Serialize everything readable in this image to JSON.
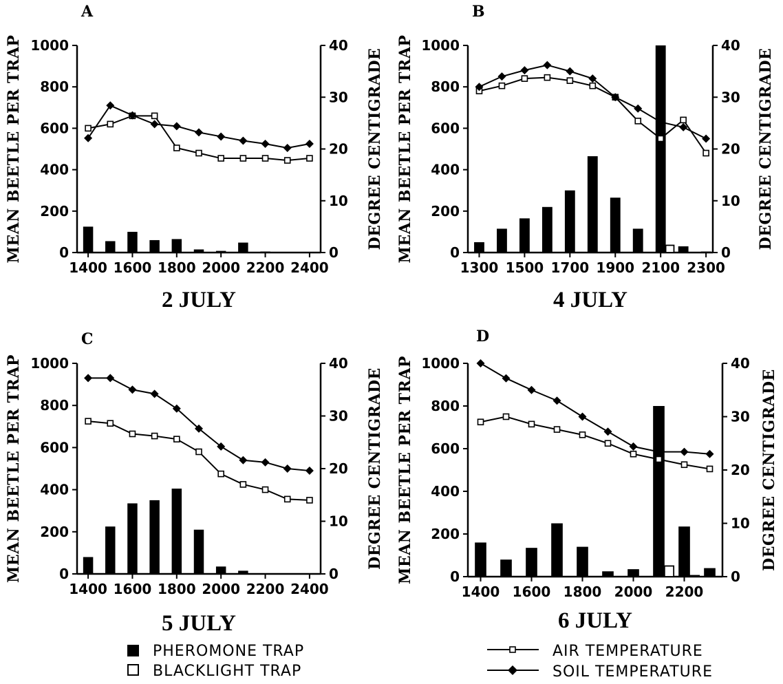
{
  "chart_data": [
    {
      "type": "bar+line",
      "panel": "A",
      "date": "2 JULY",
      "ylabel": "MEAN BEETLE PER TRAP",
      "y2label": "DEGREE CENTIGRADE",
      "ylim": [
        0,
        1000
      ],
      "y2lim": [
        0,
        40
      ],
      "yticks": [
        "0",
        "200",
        "400",
        "600",
        "800",
        "1000"
      ],
      "y2ticks": [
        "0",
        "10",
        "20",
        "30",
        "40"
      ],
      "xlim": [
        1350,
        2450
      ],
      "xticks": [
        "1400",
        "1600",
        "1800",
        "2000",
        "2200",
        "2400"
      ],
      "pheromone": {
        "x": [
          1400,
          1500,
          1600,
          1700,
          1800,
          1900,
          2000,
          2100,
          2200
        ],
        "values": [
          125,
          55,
          100,
          60,
          65,
          15,
          8,
          48,
          5
        ]
      },
      "blacklight": {
        "x": [],
        "values": []
      },
      "air_temperature": {
        "x": [
          1400,
          1500,
          1600,
          1700,
          1800,
          1900,
          2000,
          2100,
          2200,
          2300,
          2400
        ],
        "values": [
          24,
          24.8,
          26.4,
          26.4,
          20.2,
          19.2,
          18.2,
          18.2,
          18.2,
          17.8,
          18.2
        ]
      },
      "soil_temperature": {
        "x": [
          1400,
          1500,
          1600,
          1700,
          1800,
          1900,
          2000,
          2100,
          2200,
          2300,
          2400
        ],
        "values": [
          22.1,
          28.4,
          26.5,
          24.8,
          24.4,
          23.2,
          22.4,
          21.6,
          21,
          20.2,
          21
        ]
      }
    },
    {
      "type": "bar+line",
      "panel": "B",
      "date": "4 JULY",
      "ylabel": "MEAN BEETLE PER TRAP",
      "y2label": "DEGREE CENTIGRADE",
      "ylim": [
        0,
        1000
      ],
      "y2lim": [
        0,
        40
      ],
      "yticks": [
        "0",
        "200",
        "400",
        "600",
        "800",
        "1000"
      ],
      "y2ticks": [
        "0",
        "10",
        "20",
        "30",
        "40"
      ],
      "xlim": [
        1250,
        2330
      ],
      "xticks": [
        "1300",
        "1500",
        "1700",
        "1900",
        "2100",
        "2300"
      ],
      "pheromone": {
        "x": [
          1300,
          1400,
          1500,
          1600,
          1700,
          1800,
          1900,
          2000,
          2100,
          2200,
          2300
        ],
        "values": [
          50,
          115,
          165,
          220,
          300,
          465,
          265,
          115,
          1000,
          30,
          5
        ]
      },
      "blacklight": {
        "x": [
          2100
        ],
        "values": [
          35
        ]
      },
      "air_temperature": {
        "x": [
          1300,
          1400,
          1500,
          1600,
          1700,
          1800,
          1900,
          2000,
          2100,
          2200,
          2300
        ],
        "values": [
          31.2,
          32.2,
          33.6,
          33.8,
          33.2,
          32.2,
          30,
          25.4,
          22,
          25.6,
          19.2
        ]
      },
      "soil_temperature": {
        "x": [
          1300,
          1400,
          1500,
          1600,
          1700,
          1800,
          1900,
          2000,
          2100,
          2200,
          2300
        ],
        "values": [
          32,
          34,
          35.2,
          36.2,
          35,
          33.6,
          30,
          27.8,
          25.2,
          24.2,
          22
        ]
      }
    },
    {
      "type": "bar+line",
      "panel": "C",
      "date": "5 JULY",
      "ylabel": "MEAN BEETLE PER TRAP",
      "y2label": "DEGREE CENTIGRADE",
      "ylim": [
        0,
        1000
      ],
      "y2lim": [
        0,
        40
      ],
      "yticks": [
        "0",
        "200",
        "400",
        "600",
        "800",
        "1000"
      ],
      "y2ticks": [
        "0",
        "10",
        "20",
        "30",
        "40"
      ],
      "xlim": [
        1350,
        2450
      ],
      "xticks": [
        "1400",
        "1600",
        "1800",
        "2000",
        "2200",
        "2400"
      ],
      "pheromone": {
        "x": [
          1400,
          1500,
          1600,
          1700,
          1800,
          1900,
          2000,
          2100
        ],
        "values": [
          80,
          225,
          335,
          350,
          405,
          210,
          35,
          15
        ]
      },
      "blacklight": {
        "x": [],
        "values": []
      },
      "air_temperature": {
        "x": [
          1400,
          1500,
          1600,
          1700,
          1800,
          1900,
          2000,
          2100,
          2200,
          2300,
          2400
        ],
        "values": [
          29,
          28.6,
          26.6,
          26.2,
          25.6,
          23.2,
          19,
          17,
          16,
          14.2,
          14
        ]
      },
      "soil_temperature": {
        "x": [
          1400,
          1500,
          1600,
          1700,
          1800,
          1900,
          2000,
          2100,
          2200,
          2300,
          2400
        ],
        "values": [
          37.2,
          37.2,
          35,
          34.2,
          31.4,
          27.6,
          24.2,
          21.6,
          21.2,
          20,
          19.6
        ]
      }
    },
    {
      "type": "bar+line",
      "panel": "D",
      "date": "6 JULY",
      "ylabel": "MEAN BEETLE PER TRAP",
      "y2label": "DEGREE CENTIGRADE",
      "ylim": [
        0,
        1000
      ],
      "y2lim": [
        0,
        40
      ],
      "yticks": [
        "0",
        "200",
        "400",
        "600",
        "800",
        "1000"
      ],
      "y2ticks": [
        "0",
        "10",
        "20",
        "30",
        "40"
      ],
      "xlim": [
        1350,
        2350
      ],
      "xticks": [
        "1400",
        "1600",
        "1800",
        "2000",
        "2200"
      ],
      "pheromone": {
        "x": [
          1400,
          1500,
          1600,
          1700,
          1800,
          1900,
          2000,
          2100,
          2200,
          2300
        ],
        "values": [
          160,
          80,
          135,
          250,
          140,
          25,
          35,
          800,
          235,
          40
        ]
      },
      "blacklight": {
        "x": [
          2100,
          2200
        ],
        "values": [
          50,
          5
        ]
      },
      "air_temperature": {
        "x": [
          1400,
          1500,
          1600,
          1700,
          1800,
          1900,
          2000,
          2100,
          2200,
          2300
        ],
        "values": [
          29,
          30,
          28.6,
          27.6,
          26.6,
          25,
          23,
          22,
          21,
          20.2
        ]
      },
      "soil_temperature": {
        "x": [
          1400,
          1500,
          1600,
          1700,
          1800,
          1900,
          2000,
          2100,
          2200,
          2300
        ],
        "values": [
          40,
          37.2,
          35,
          33,
          30,
          27.2,
          24.4,
          23.4,
          23.4,
          23
        ]
      }
    }
  ],
  "legend": {
    "pheromone": "PHEROMONE TRAP",
    "blacklight": "BLACKLIGHT TRAP",
    "air": "AIR TEMPERATURE",
    "soil": "SOIL TEMPERATURE"
  }
}
